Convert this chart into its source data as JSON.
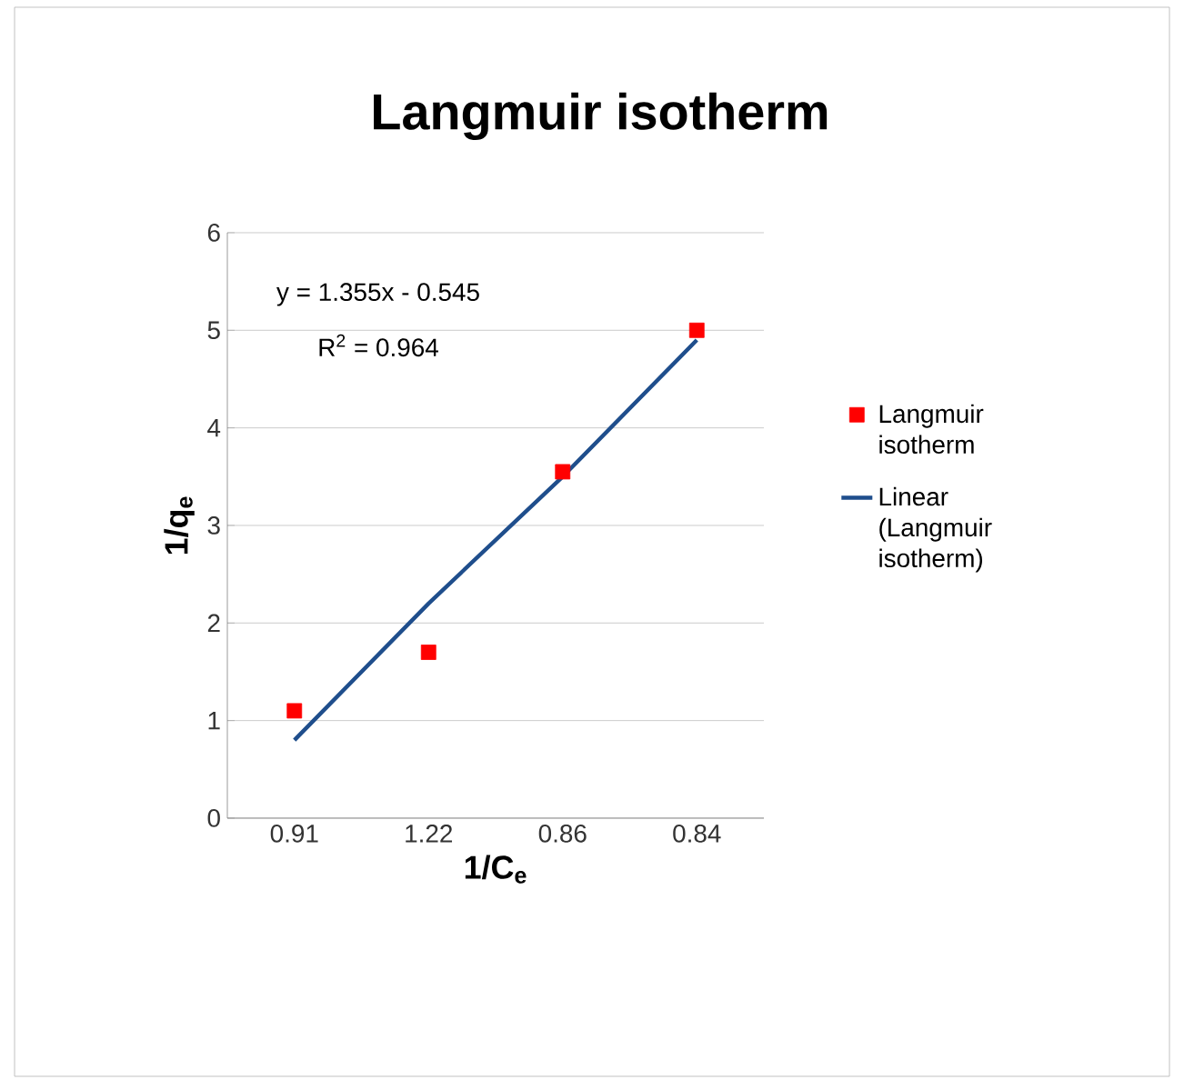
{
  "chart_data": {
    "type": "scatter",
    "title": "Langmuir isotherm",
    "xlabel": "1/C$_{e}$",
    "ylabel": "1/q$_{e}$",
    "categories": [
      "0.91",
      "1.22",
      "0.86",
      "0.84"
    ],
    "series": [
      {
        "name": "Langmuir isotherm",
        "color": "#ff0000",
        "marker": "square",
        "values": [
          1.1,
          1.7,
          3.55,
          5.0
        ]
      },
      {
        "name": "Linear (Langmuir isotherm)",
        "type": "line",
        "color": "#1f4e8c",
        "marker": "none",
        "values": [
          0.8,
          2.2,
          3.5,
          4.9
        ]
      }
    ],
    "ylim": [
      0,
      6
    ],
    "yticks": [
      0,
      1,
      2,
      3,
      4,
      5,
      6
    ],
    "grid": "y",
    "legend": "right",
    "annotations": [
      "y = 1.355x - 0.545",
      "R$^{2}$ = 0.964"
    ]
  }
}
